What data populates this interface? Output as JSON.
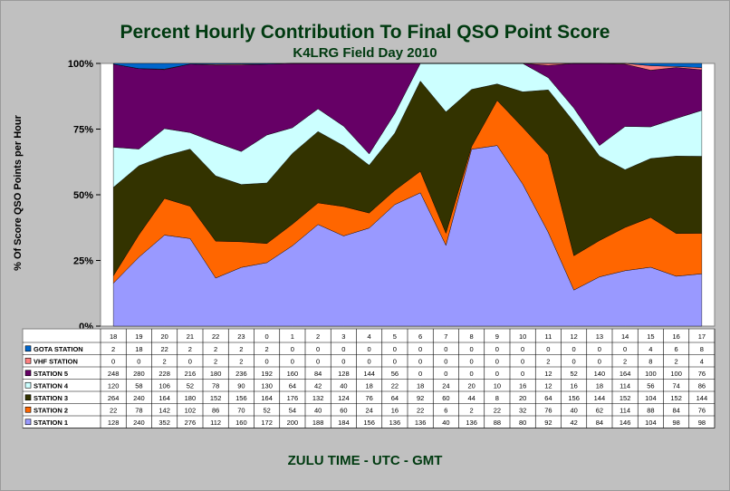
{
  "chart_data": {
    "type": "area",
    "stacked": "percent",
    "title": "Percent Hourly Contribution To Final QSO Point Score",
    "subtitle": "K4LRG Field Day 2010",
    "ylabel": "% Of Score QSO Points  per  Hour",
    "xlabel": "ZULU TIME  -  UTC  -  GMT",
    "ylim": [
      0,
      100
    ],
    "yticks": [
      "0%",
      "25%",
      "50%",
      "75%",
      "100%"
    ],
    "ytick_values": [
      0,
      25,
      50,
      75,
      100
    ],
    "categories": [
      "18",
      "19",
      "20",
      "21",
      "22",
      "23",
      "0",
      "1",
      "2",
      "3",
      "4",
      "5",
      "6",
      "7",
      "8",
      "9",
      "10",
      "11",
      "12",
      "13",
      "14",
      "15",
      "16",
      "17"
    ],
    "legend": "data-table-left",
    "series": [
      {
        "name": "STATION 1",
        "color": "#9999ff",
        "values": [
          128,
          240,
          352,
          276,
          112,
          160,
          172,
          200,
          188,
          184,
          156,
          136,
          136,
          40,
          136,
          88,
          80,
          92,
          42,
          84,
          146,
          104,
          98,
          98
        ]
      },
      {
        "name": "STATION 2",
        "color": "#ff6600",
        "values": [
          22,
          78,
          142,
          102,
          86,
          70,
          52,
          54,
          40,
          60,
          24,
          16,
          22,
          6,
          2,
          22,
          32,
          76,
          40,
          62,
          114,
          88,
          84,
          76
        ]
      },
      {
        "name": "STATION 3",
        "color": "#333300",
        "values": [
          264,
          240,
          164,
          180,
          152,
          156,
          164,
          176,
          132,
          124,
          76,
          64,
          92,
          60,
          44,
          8,
          20,
          64,
          156,
          144,
          152,
          104,
          152,
          144
        ]
      },
      {
        "name": "STATION 4",
        "color": "#ccffff",
        "values": [
          120,
          58,
          106,
          52,
          78,
          90,
          130,
          64,
          42,
          40,
          18,
          22,
          18,
          24,
          20,
          10,
          16,
          12,
          16,
          18,
          114,
          56,
          74,
          86
        ]
      },
      {
        "name": "STATION 5",
        "color": "#660066",
        "values": [
          248,
          280,
          228,
          216,
          180,
          236,
          192,
          160,
          84,
          128,
          144,
          56,
          0,
          0,
          0,
          0,
          0,
          12,
          52,
          140,
          164,
          100,
          100,
          76
        ]
      },
      {
        "name": "VHF STATION",
        "color": "#ff8080",
        "values": [
          0,
          0,
          2,
          0,
          2,
          2,
          0,
          0,
          0,
          0,
          0,
          0,
          0,
          0,
          0,
          0,
          0,
          2,
          0,
          0,
          2,
          8,
          2,
          4
        ]
      },
      {
        "name": "GOTA STATION",
        "color": "#0066cc",
        "values": [
          2,
          18,
          22,
          2,
          2,
          2,
          2,
          0,
          0,
          0,
          0,
          0,
          0,
          0,
          0,
          0,
          0,
          0,
          0,
          0,
          0,
          4,
          6,
          8
        ]
      }
    ]
  }
}
